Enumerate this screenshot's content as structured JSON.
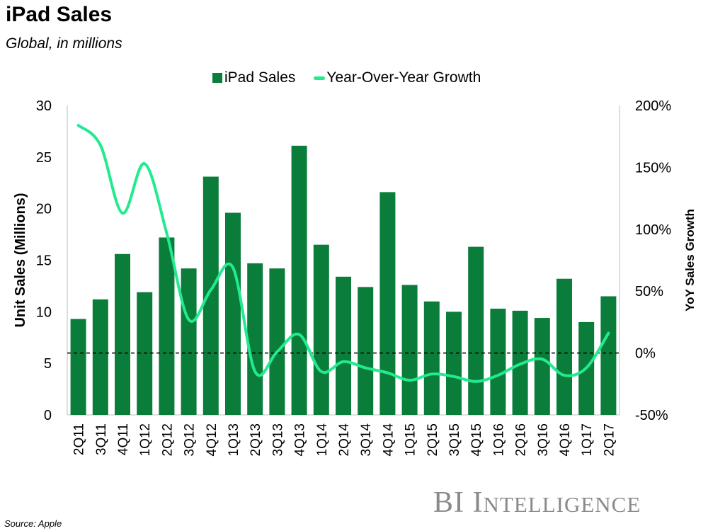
{
  "title": "iPad Sales",
  "subtitle": "Global, in millions",
  "source": "Source: Apple",
  "logo": {
    "first": "BI",
    "big_i": "I",
    "rest": "NTELLIGENCE"
  },
  "colors": {
    "bar": "#0b7d3b",
    "line": "#22ea8f",
    "axis": "#bfbfbf"
  },
  "chart_data": {
    "type": "bar",
    "title": "iPad Sales",
    "categories": [
      "2Q11",
      "3Q11",
      "4Q11",
      "1Q12",
      "2Q12",
      "3Q12",
      "4Q12",
      "1Q13",
      "2Q13",
      "3Q13",
      "4Q13",
      "1Q14",
      "2Q14",
      "3Q14",
      "4Q14",
      "1Q15",
      "2Q15",
      "3Q15",
      "4Q15",
      "1Q16",
      "2Q16",
      "3Q16",
      "4Q16",
      "1Q17",
      "2Q17"
    ],
    "series": [
      {
        "name": "iPad Sales",
        "type": "bar",
        "axis": "left",
        "values": [
          9.3,
          11.2,
          15.6,
          11.9,
          17.2,
          14.2,
          23.1,
          19.6,
          14.7,
          14.2,
          26.1,
          16.5,
          13.4,
          12.4,
          21.6,
          12.6,
          11.0,
          10.0,
          16.3,
          10.3,
          10.1,
          9.4,
          13.2,
          9.0,
          11.5
        ]
      },
      {
        "name": "Year-Over-Year Growth",
        "type": "line",
        "axis": "right",
        "values": [
          184,
          168,
          113,
          153,
          97,
          27,
          51,
          69,
          -15,
          1,
          15,
          -15,
          -7,
          -12,
          -16,
          -22,
          -17,
          -19,
          -23,
          -18,
          -9,
          -5,
          -18,
          -12,
          16
        ]
      }
    ],
    "ylabel": "Unit Sales (Millions)",
    "y2label": "YoY Sales Growth",
    "ylim": [
      0,
      30
    ],
    "yticks": [
      "0",
      "5",
      "10",
      "15",
      "20",
      "25",
      "30"
    ],
    "y2lim": [
      -50,
      200
    ],
    "y2ticks": [
      "-50%",
      "0%",
      "50%",
      "100%",
      "150%",
      "200%"
    ],
    "reference_line": 0,
    "legend": "top",
    "grid": false
  }
}
